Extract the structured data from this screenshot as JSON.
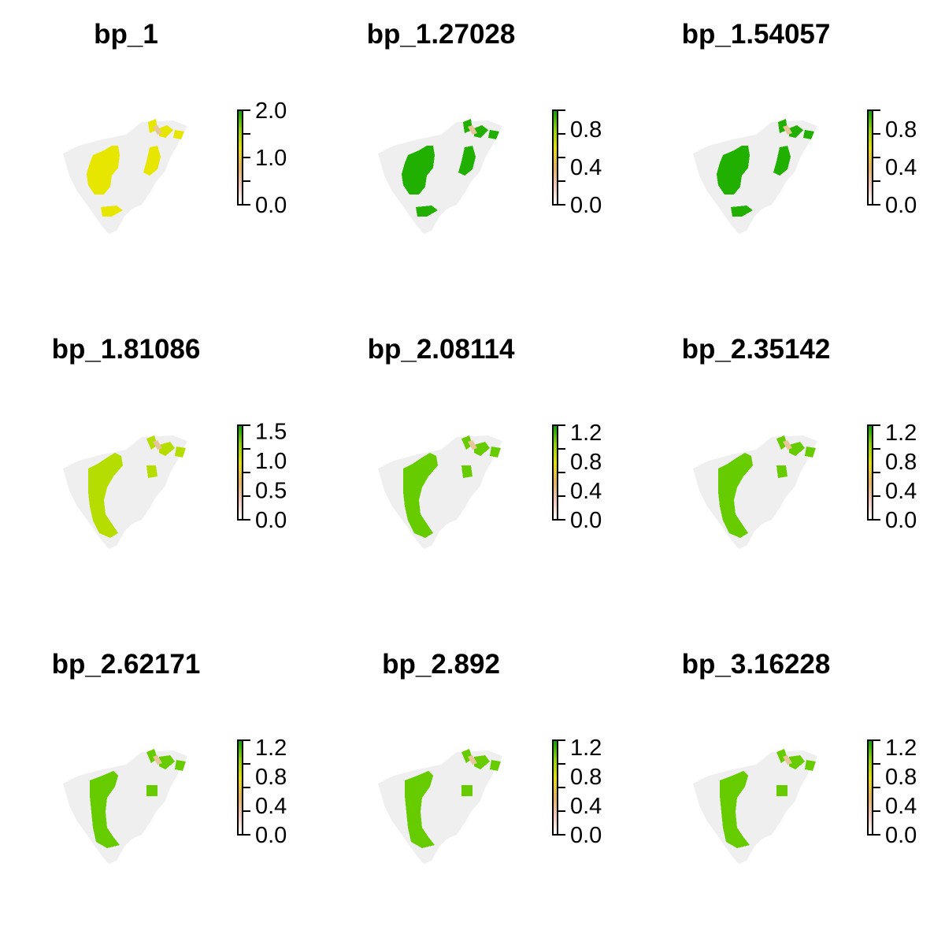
{
  "colors": {
    "background_region": "#efefef",
    "ramp_stops": [
      "#ffffff",
      "#f2c8bd",
      "#e7b25a",
      "#e5e000",
      "#8fd400",
      "#00a000"
    ]
  },
  "panels": [
    {
      "title": "bp_1",
      "fill": "#e6e600",
      "legend_max": 2.0,
      "ticks": [
        "0.0",
        "1.0",
        "2.0"
      ],
      "tick_values": [
        0,
        1,
        2
      ]
    },
    {
      "title": "bp_1.27028",
      "fill": "#22b000",
      "legend_max": 1.0,
      "ticks": [
        "0.0",
        "0.4",
        "0.8"
      ],
      "tick_values": [
        0,
        0.4,
        0.8
      ]
    },
    {
      "title": "bp_1.54057",
      "fill": "#22b000",
      "legend_max": 1.0,
      "ticks": [
        "0.0",
        "0.4",
        "0.8"
      ],
      "tick_values": [
        0,
        0.4,
        0.8
      ]
    },
    {
      "title": "bp_1.81086",
      "fill": "#b5de00",
      "legend_max": 1.6,
      "ticks": [
        "0.0",
        "0.5",
        "1.0",
        "1.5"
      ],
      "tick_values": [
        0,
        0.5,
        1.0,
        1.5
      ]
    },
    {
      "title": "bp_2.08114",
      "fill": "#66cc00",
      "legend_max": 1.3,
      "ticks": [
        "0.0",
        "0.4",
        "0.8",
        "1.2"
      ],
      "tick_values": [
        0,
        0.4,
        0.8,
        1.2
      ]
    },
    {
      "title": "bp_2.35142",
      "fill": "#66cc00",
      "legend_max": 1.3,
      "ticks": [
        "0.0",
        "0.4",
        "0.8",
        "1.2"
      ],
      "tick_values": [
        0,
        0.4,
        0.8,
        1.2
      ]
    },
    {
      "title": "bp_2.62171",
      "fill": "#66cc00",
      "legend_max": 1.3,
      "ticks": [
        "0.0",
        "0.4",
        "0.8",
        "1.2"
      ],
      "tick_values": [
        0,
        0.4,
        0.8,
        1.2
      ]
    },
    {
      "title": "bp_2.892",
      "fill": "#66cc00",
      "legend_max": 1.3,
      "ticks": [
        "0.0",
        "0.4",
        "0.8",
        "1.2"
      ],
      "tick_values": [
        0,
        0.4,
        0.8,
        1.2
      ]
    },
    {
      "title": "bp_3.16228",
      "fill": "#66cc00",
      "legend_max": 1.3,
      "ticks": [
        "0.0",
        "0.4",
        "0.8",
        "1.2"
      ],
      "tick_values": [
        0,
        0.4,
        0.8,
        1.2
      ]
    }
  ]
}
